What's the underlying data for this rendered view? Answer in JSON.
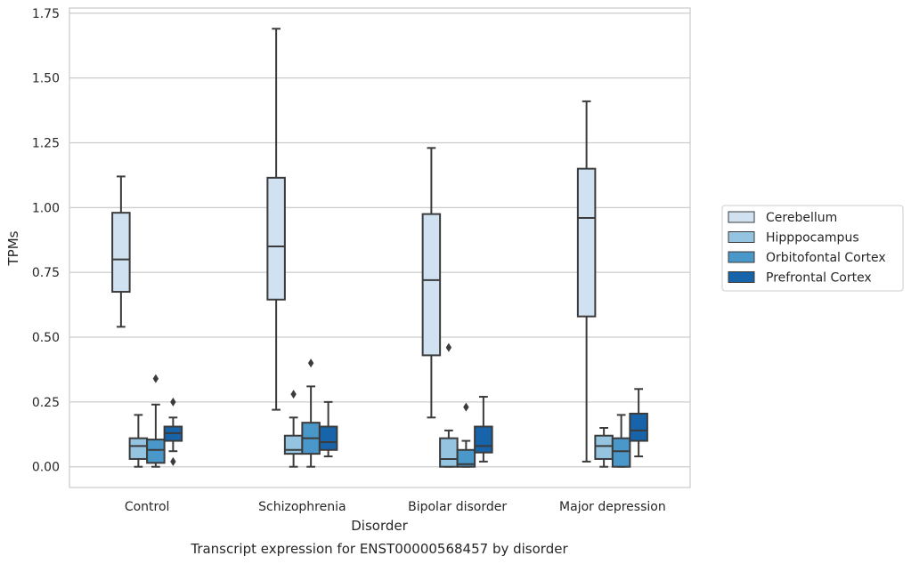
{
  "chart_data": {
    "type": "box",
    "title": "",
    "caption": "Transcript expression for ENST00000568457 by disorder",
    "xlabel": "Disorder",
    "ylabel": "TPMs",
    "ylim": [
      -0.08,
      1.77
    ],
    "yticks": [
      0.0,
      0.25,
      0.5,
      0.75,
      1.0,
      1.25,
      1.5,
      1.75
    ],
    "ytick_labels": [
      "0.00",
      "0.25",
      "0.50",
      "0.75",
      "1.00",
      "1.25",
      "1.50",
      "1.75"
    ],
    "categories": [
      "Control",
      "Schizophrenia",
      "Bipolar disorder",
      "Major depression"
    ],
    "grid": "horizontal",
    "legend_position": "right",
    "series": [
      {
        "name": "Cerebellum",
        "color": "#d0e1f2",
        "boxes": [
          {
            "whislo": 0.54,
            "q1": 0.675,
            "med": 0.8,
            "q3": 0.98,
            "whishi": 1.12,
            "fliers": []
          },
          {
            "whislo": 0.22,
            "q1": 0.645,
            "med": 0.85,
            "q3": 1.115,
            "whishi": 1.69,
            "fliers": []
          },
          {
            "whislo": 0.19,
            "q1": 0.43,
            "med": 0.72,
            "q3": 0.975,
            "whishi": 1.23,
            "fliers": []
          },
          {
            "whislo": 0.02,
            "q1": 0.58,
            "med": 0.96,
            "q3": 1.15,
            "whishi": 1.41,
            "fliers": []
          }
        ]
      },
      {
        "name": "Hipppocampus",
        "color": "#94c4df",
        "boxes": [
          {
            "whislo": 0.0,
            "q1": 0.03,
            "med": 0.08,
            "q3": 0.11,
            "whishi": 0.2,
            "fliers": []
          },
          {
            "whislo": 0.0,
            "q1": 0.05,
            "med": 0.065,
            "q3": 0.12,
            "whishi": 0.19,
            "fliers": [
              0.28
            ]
          },
          {
            "whislo": 0.0,
            "q1": 0.0,
            "med": 0.03,
            "q3": 0.11,
            "whishi": 0.14,
            "fliers": [
              0.46
            ]
          },
          {
            "whislo": 0.0,
            "q1": 0.03,
            "med": 0.08,
            "q3": 0.12,
            "whishi": 0.15,
            "fliers": []
          }
        ]
      },
      {
        "name": "Orbitofontal Cortex",
        "color": "#4a98c9",
        "boxes": [
          {
            "whislo": 0.0,
            "q1": 0.015,
            "med": 0.065,
            "q3": 0.105,
            "whishi": 0.24,
            "fliers": [
              0.34
            ]
          },
          {
            "whislo": 0.0,
            "q1": 0.05,
            "med": 0.11,
            "q3": 0.17,
            "whishi": 0.31,
            "fliers": [
              0.4
            ]
          },
          {
            "whislo": 0.0,
            "q1": 0.0,
            "med": 0.01,
            "q3": 0.065,
            "whishi": 0.1,
            "fliers": [
              0.23
            ]
          },
          {
            "whislo": 0.0,
            "q1": 0.0,
            "med": 0.06,
            "q3": 0.11,
            "whishi": 0.2,
            "fliers": []
          }
        ]
      },
      {
        "name": "Prefrontal Cortex",
        "color": "#1764ab",
        "boxes": [
          {
            "whislo": 0.06,
            "q1": 0.1,
            "med": 0.13,
            "q3": 0.155,
            "whishi": 0.19,
            "fliers": [
              0.25,
              0.02
            ]
          },
          {
            "whislo": 0.04,
            "q1": 0.065,
            "med": 0.095,
            "q3": 0.155,
            "whishi": 0.25,
            "fliers": []
          },
          {
            "whislo": 0.02,
            "q1": 0.055,
            "med": 0.08,
            "q3": 0.155,
            "whishi": 0.27,
            "fliers": []
          },
          {
            "whislo": 0.04,
            "q1": 0.1,
            "med": 0.14,
            "q3": 0.205,
            "whishi": 0.3,
            "fliers": []
          }
        ]
      }
    ]
  }
}
